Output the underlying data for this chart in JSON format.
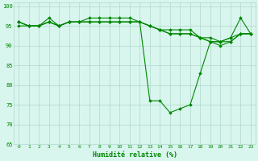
{
  "xlabel": "Humidité relative (%)",
  "xlim": [
    -0.5,
    23.5
  ],
  "ylim": [
    65,
    101
  ],
  "yticks": [
    65,
    70,
    75,
    80,
    85,
    90,
    95,
    100
  ],
  "xticks": [
    0,
    1,
    2,
    3,
    4,
    5,
    6,
    7,
    8,
    9,
    10,
    11,
    12,
    13,
    14,
    15,
    16,
    17,
    18,
    19,
    20,
    21,
    22,
    23
  ],
  "bg_color": "#d8f5ee",
  "grid_color": "#b0d8cc",
  "line_color": "#008800",
  "series": [
    [
      95,
      95,
      95,
      97,
      95,
      96,
      96,
      97,
      97,
      97,
      97,
      97,
      96,
      76,
      76,
      73,
      74,
      75,
      83,
      91,
      91,
      92,
      97,
      93
    ],
    [
      96,
      95,
      95,
      96,
      95,
      96,
      96,
      96,
      96,
      96,
      96,
      96,
      96,
      95,
      94,
      94,
      94,
      94,
      92,
      92,
      91,
      92,
      93,
      93
    ],
    [
      96,
      95,
      95,
      96,
      95,
      96,
      96,
      96,
      96,
      96,
      96,
      96,
      96,
      95,
      94,
      93,
      93,
      93,
      92,
      91,
      91,
      91,
      93,
      93
    ],
    [
      96,
      95,
      95,
      96,
      95,
      96,
      96,
      96,
      96,
      96,
      96,
      96,
      96,
      95,
      94,
      93,
      93,
      93,
      92,
      91,
      90,
      91,
      93,
      93
    ]
  ]
}
